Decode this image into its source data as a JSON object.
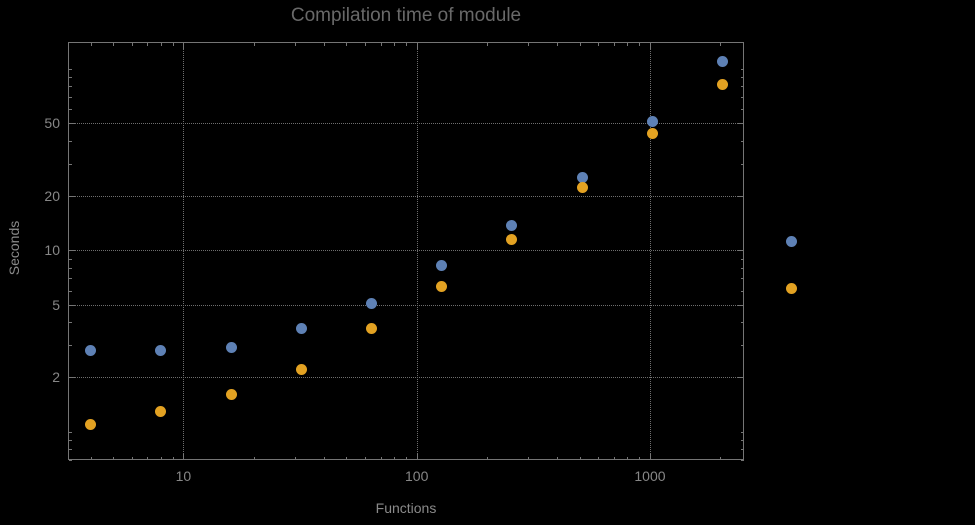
{
  "chart": {
    "title": "Compilation time of module",
    "xlabel": "Functions",
    "ylabel": "Seconds",
    "background_color": "#000000",
    "title_color": "#696969",
    "axis_label_color": "#8a8a8a",
    "tick_label_color": "#878787",
    "grid_color": "#6f6f6f",
    "frame_color": "#757575"
  },
  "chart_data": {
    "type": "scatter",
    "title": "Compilation time of module",
    "xlabel": "Functions",
    "ylabel": "Seconds",
    "x_scale": "log",
    "y_scale": "log",
    "grid": true,
    "grid_style": "dotted",
    "xlim": [
      3.2,
      2530
    ],
    "ylim": [
      0.7,
      140
    ],
    "x_ticks": [
      10,
      100,
      1000
    ],
    "y_ticks": [
      2,
      5,
      10,
      20,
      50
    ],
    "x": [
      4,
      8,
      16,
      32,
      64,
      128,
      256,
      512,
      1024,
      2048
    ],
    "series": [
      {
        "name": "series-1",
        "color": "#5e81b5",
        "values": [
          2.8,
          2.8,
          2.9,
          3.7,
          5.1,
          8.2,
          13.7,
          25,
          51,
          109
        ]
      },
      {
        "name": "series-2",
        "color": "#e3a222",
        "values": [
          1.1,
          1.3,
          1.6,
          2.2,
          3.7,
          6.3,
          11.4,
          22,
          44,
          82
        ]
      }
    ],
    "legend_position": "right-outside",
    "legend_labels_visible": false
  }
}
